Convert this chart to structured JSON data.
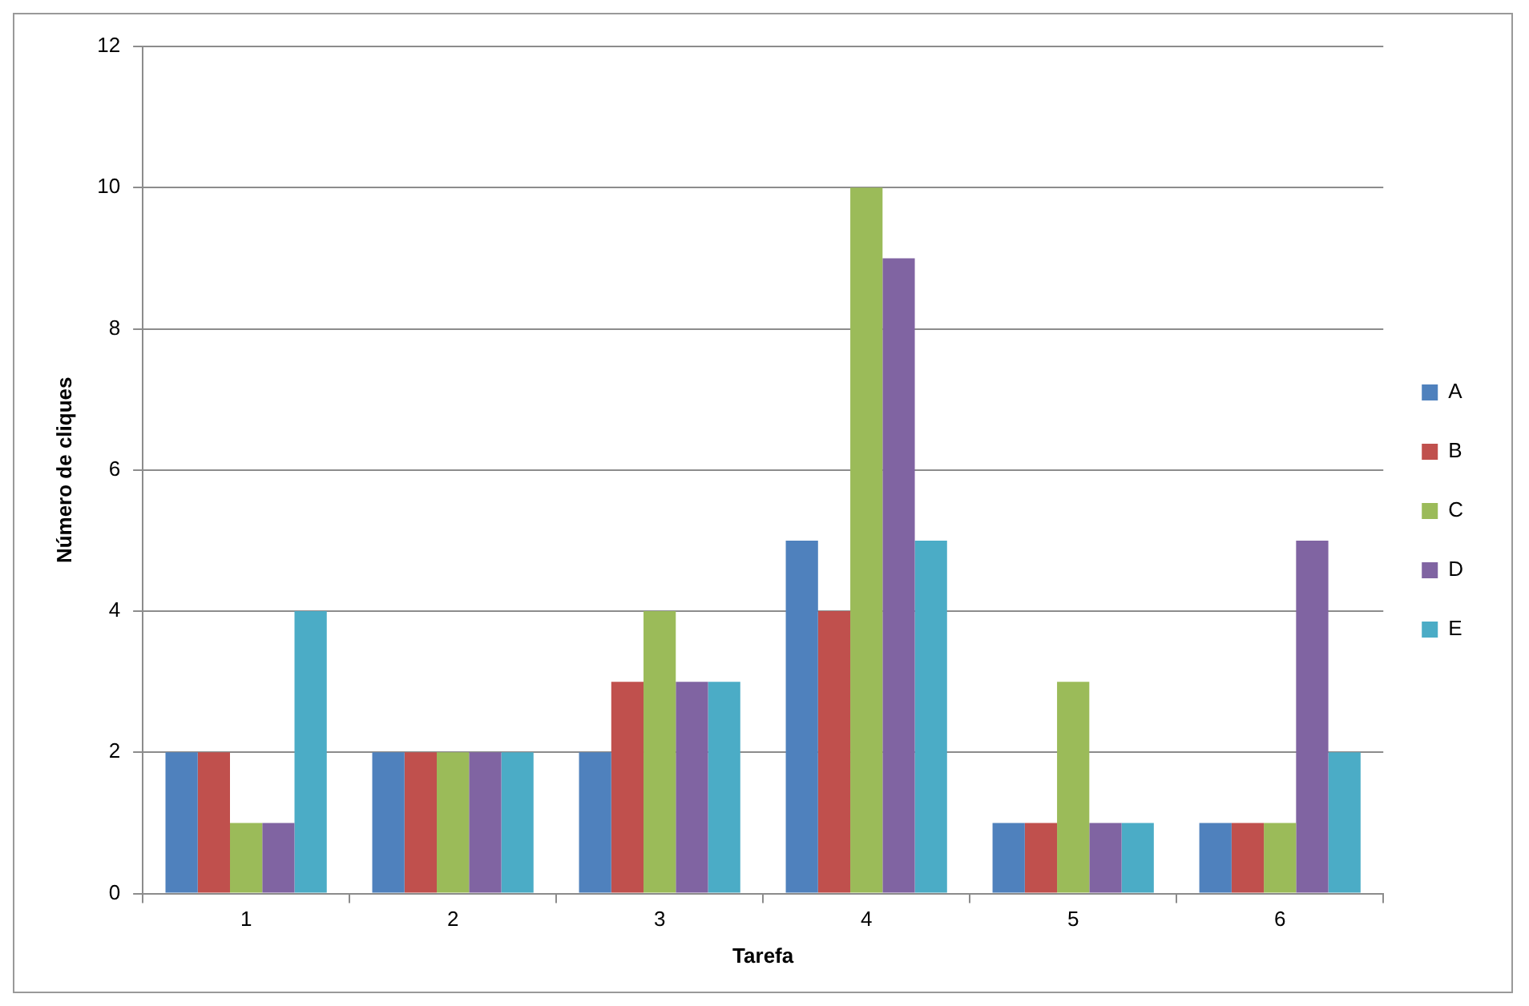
{
  "chart_data": {
    "type": "bar",
    "xlabel": "Tarefa",
    "ylabel": "Número de cliques",
    "categories": [
      "1",
      "2",
      "3",
      "4",
      "5",
      "6"
    ],
    "series": [
      {
        "name": "A",
        "color": "#4f81bd",
        "values": [
          2,
          2,
          2,
          5,
          1,
          1
        ]
      },
      {
        "name": "B",
        "color": "#c0504d",
        "values": [
          2,
          2,
          3,
          4,
          1,
          1
        ]
      },
      {
        "name": "C",
        "color": "#9bbb59",
        "values": [
          1,
          2,
          4,
          10,
          3,
          1
        ]
      },
      {
        "name": "D",
        "color": "#8064a2",
        "values": [
          1,
          2,
          3,
          9,
          1,
          5
        ]
      },
      {
        "name": "E",
        "color": "#4bacc6",
        "values": [
          4,
          2,
          3,
          5,
          1,
          2
        ]
      }
    ],
    "ylim": [
      0,
      12
    ],
    "yticks": [
      0,
      2,
      4,
      6,
      8,
      10,
      12
    ],
    "grid": "y",
    "legend": "right"
  }
}
